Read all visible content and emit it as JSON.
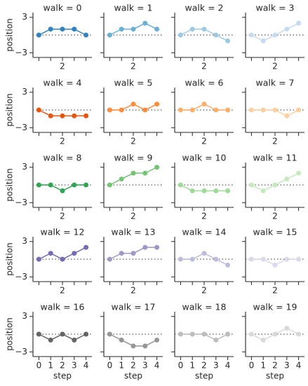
{
  "chart_data": [
    {
      "type": "line",
      "title": "walk = 0",
      "x": [
        0,
        1,
        2,
        3,
        4
      ],
      "values": [
        0,
        1,
        1,
        1,
        0
      ],
      "color": "#3182bd",
      "xlim": [
        -0.5,
        4.5
      ],
      "ylim": [
        -3.8,
        3.8
      ],
      "yticks": [
        3,
        {
          "value": -3,
          "label": "−3"
        }
      ],
      "xticks": [
        2
      ],
      "hline": 0,
      "ylabel": "position"
    },
    {
      "type": "line",
      "title": "walk = 1",
      "x": [
        0,
        1,
        2,
        3,
        4
      ],
      "values": [
        0,
        1,
        1,
        2,
        1
      ],
      "color": "#6baed6",
      "xlim": [
        -0.5,
        4.5
      ],
      "ylim": [
        -3.8,
        3.8
      ],
      "yticks": [
        3,
        -3
      ],
      "xticks": [
        2
      ],
      "hline": 0
    },
    {
      "type": "line",
      "title": "walk = 2",
      "x": [
        0,
        1,
        2,
        3,
        4
      ],
      "values": [
        0,
        1,
        1,
        0,
        -1
      ],
      "color": "#9ecae1",
      "xlim": [
        -0.5,
        4.5
      ],
      "ylim": [
        -3.8,
        3.8
      ],
      "yticks": [
        3,
        -3
      ],
      "xticks": [
        2
      ],
      "hline": 0
    },
    {
      "type": "line",
      "title": "walk = 3",
      "x": [
        0,
        1,
        2,
        3,
        4
      ],
      "values": [
        0,
        -1,
        0,
        1,
        2
      ],
      "color": "#c6dbef",
      "xlim": [
        -0.5,
        4.5
      ],
      "ylim": [
        -3.8,
        3.8
      ],
      "yticks": [
        3,
        -3
      ],
      "xticks": [
        2
      ],
      "hline": 0
    },
    {
      "type": "line",
      "title": "walk = 4",
      "x": [
        0,
        1,
        2,
        3,
        4
      ],
      "values": [
        0,
        -1,
        -1,
        -1,
        -1
      ],
      "color": "#e6550d",
      "xlim": [
        -0.5,
        4.5
      ],
      "ylim": [
        -3.8,
        3.8
      ],
      "yticks": [
        3,
        {
          "value": -3,
          "label": "−3"
        }
      ],
      "xticks": [
        2
      ],
      "hline": 0,
      "ylabel": "position"
    },
    {
      "type": "line",
      "title": "walk = 5",
      "x": [
        0,
        1,
        2,
        3,
        4
      ],
      "values": [
        0,
        0,
        1,
        0,
        1
      ],
      "color": "#fd8d3c",
      "xlim": [
        -0.5,
        4.5
      ],
      "ylim": [
        -3.8,
        3.8
      ],
      "yticks": [
        3,
        -3
      ],
      "xticks": [
        2
      ],
      "hline": 0
    },
    {
      "type": "line",
      "title": "walk = 6",
      "x": [
        0,
        1,
        2,
        3,
        4
      ],
      "values": [
        0,
        0,
        1,
        0,
        0
      ],
      "color": "#fdae6b",
      "xlim": [
        -0.5,
        4.5
      ],
      "ylim": [
        -3.8,
        3.8
      ],
      "yticks": [
        3,
        -3
      ],
      "xticks": [
        2
      ],
      "hline": 0
    },
    {
      "type": "line",
      "title": "walk = 7",
      "x": [
        0,
        1,
        2,
        3,
        4
      ],
      "values": [
        0,
        0,
        0,
        -1,
        0
      ],
      "color": "#fdd0a2",
      "xlim": [
        -0.5,
        4.5
      ],
      "ylim": [
        -3.8,
        3.8
      ],
      "yticks": [
        3,
        -3
      ],
      "xticks": [
        2
      ],
      "hline": 0
    },
    {
      "type": "line",
      "title": "walk = 8",
      "x": [
        0,
        1,
        2,
        3,
        4
      ],
      "values": [
        0,
        0,
        -1,
        0,
        0
      ],
      "color": "#31a354",
      "xlim": [
        -0.5,
        4.5
      ],
      "ylim": [
        -3.8,
        3.8
      ],
      "yticks": [
        3,
        {
          "value": -3,
          "label": "−3"
        }
      ],
      "xticks": [
        2
      ],
      "hline": 0,
      "ylabel": "position"
    },
    {
      "type": "line",
      "title": "walk = 9",
      "x": [
        0,
        1,
        2,
        3,
        4
      ],
      "values": [
        0,
        1,
        2,
        2,
        3
      ],
      "color": "#74c476",
      "xlim": [
        -0.5,
        4.5
      ],
      "ylim": [
        -3.8,
        3.8
      ],
      "yticks": [
        3,
        -3
      ],
      "xticks": [
        2
      ],
      "hline": 0
    },
    {
      "type": "line",
      "title": "walk = 10",
      "x": [
        0,
        1,
        2,
        3,
        4
      ],
      "values": [
        0,
        -1,
        -1,
        -1,
        -1
      ],
      "color": "#a1d99b",
      "xlim": [
        -0.5,
        4.5
      ],
      "ylim": [
        -3.8,
        3.8
      ],
      "yticks": [
        3,
        -3
      ],
      "xticks": [
        2
      ],
      "hline": 0
    },
    {
      "type": "line",
      "title": "walk = 11",
      "x": [
        0,
        1,
        2,
        3,
        4
      ],
      "values": [
        0,
        -1,
        0,
        1,
        2
      ],
      "color": "#c7e9c0",
      "xlim": [
        -0.5,
        4.5
      ],
      "ylim": [
        -3.8,
        3.8
      ],
      "yticks": [
        3,
        -3
      ],
      "xticks": [
        2
      ],
      "hline": 0
    },
    {
      "type": "line",
      "title": "walk = 12",
      "x": [
        0,
        1,
        2,
        3,
        4
      ],
      "values": [
        0,
        1,
        0,
        1,
        2
      ],
      "color": "#756bb1",
      "xlim": [
        -0.5,
        4.5
      ],
      "ylim": [
        -3.8,
        3.8
      ],
      "yticks": [
        3,
        {
          "value": -3,
          "label": "−3"
        }
      ],
      "xticks": [
        2
      ],
      "hline": 0,
      "ylabel": "position"
    },
    {
      "type": "line",
      "title": "walk = 13",
      "x": [
        0,
        1,
        2,
        3,
        4
      ],
      "values": [
        0,
        1,
        1,
        2,
        2
      ],
      "color": "#9e9ac8",
      "xlim": [
        -0.5,
        4.5
      ],
      "ylim": [
        -3.8,
        3.8
      ],
      "yticks": [
        3,
        -3
      ],
      "xticks": [
        2
      ],
      "hline": 0
    },
    {
      "type": "line",
      "title": "walk = 14",
      "x": [
        0,
        1,
        2,
        3,
        4
      ],
      "values": [
        0,
        0,
        1,
        0,
        -1
      ],
      "color": "#bcbddc",
      "xlim": [
        -0.5,
        4.5
      ],
      "ylim": [
        -3.8,
        3.8
      ],
      "yticks": [
        3,
        -3
      ],
      "xticks": [
        2
      ],
      "hline": 0
    },
    {
      "type": "line",
      "title": "walk = 15",
      "x": [
        0,
        1,
        2,
        3,
        4
      ],
      "values": [
        0,
        0,
        -1,
        0,
        0
      ],
      "color": "#dadaeb",
      "xlim": [
        -0.5,
        4.5
      ],
      "ylim": [
        -3.8,
        3.8
      ],
      "yticks": [
        3,
        -3
      ],
      "xticks": [
        2
      ],
      "hline": 0
    },
    {
      "type": "line",
      "title": "walk = 16",
      "x": [
        0,
        1,
        2,
        3,
        4
      ],
      "values": [
        0,
        -1,
        0,
        -1,
        0
      ],
      "color": "#636363",
      "xlim": [
        -0.5,
        4.5
      ],
      "ylim": [
        -3.8,
        3.8
      ],
      "yticks": [
        3,
        {
          "value": -3,
          "label": "−3"
        }
      ],
      "xticks": [
        0,
        1,
        2,
        3,
        4
      ],
      "hline": 0,
      "ylabel": "position",
      "xlabel": "step"
    },
    {
      "type": "line",
      "title": "walk = 17",
      "x": [
        0,
        1,
        2,
        3,
        4
      ],
      "values": [
        0,
        -1,
        -2,
        -2,
        -1
      ],
      "color": "#969696",
      "xlim": [
        -0.5,
        4.5
      ],
      "ylim": [
        -3.8,
        3.8
      ],
      "yticks": [
        3,
        -3
      ],
      "xticks": [
        0,
        1,
        2,
        3,
        4
      ],
      "hline": 0,
      "xlabel": "step"
    },
    {
      "type": "line",
      "title": "walk = 18",
      "x": [
        0,
        1,
        2,
        3,
        4
      ],
      "values": [
        0,
        0,
        0,
        -1,
        0
      ],
      "color": "#bdbdbd",
      "xlim": [
        -0.5,
        4.5
      ],
      "ylim": [
        -3.8,
        3.8
      ],
      "yticks": [
        3,
        -3
      ],
      "xticks": [
        0,
        1,
        2,
        3,
        4
      ],
      "hline": 0,
      "xlabel": "step"
    },
    {
      "type": "line",
      "title": "walk = 19",
      "x": [
        0,
        1,
        2,
        3,
        4
      ],
      "values": [
        0,
        -1,
        0,
        1,
        0
      ],
      "color": "#d9d9d9",
      "xlim": [
        -0.5,
        4.5
      ],
      "ylim": [
        -3.8,
        3.8
      ],
      "yticks": [
        3,
        -3
      ],
      "xticks": [
        0,
        1,
        2,
        3,
        4
      ],
      "hline": 0,
      "xlabel": "step"
    }
  ]
}
